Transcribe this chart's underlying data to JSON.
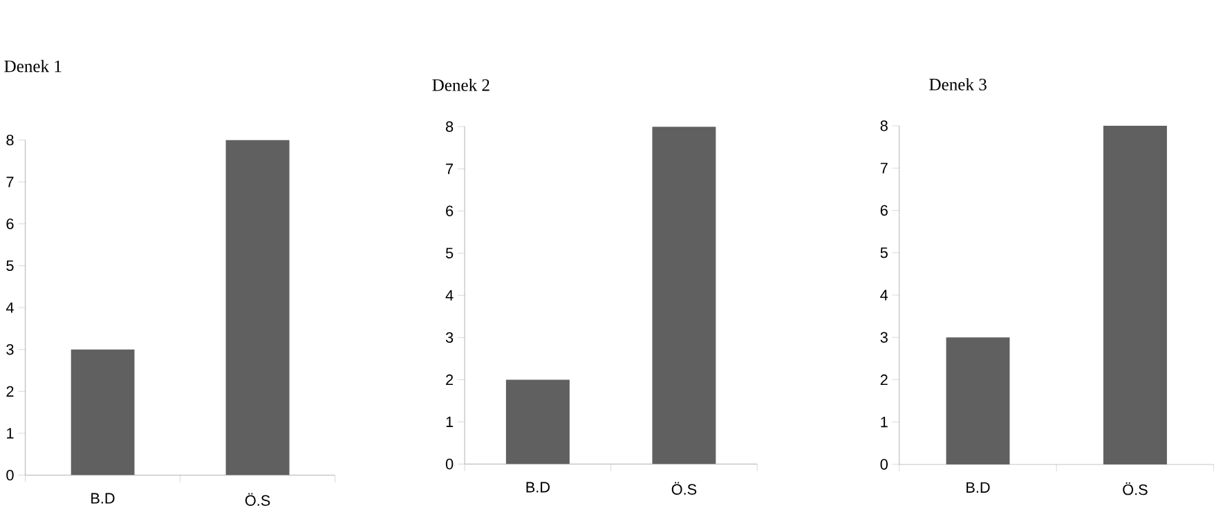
{
  "chart_data": [
    {
      "type": "bar",
      "title": "Denek 1",
      "categories": [
        "B.D",
        "Ö.S"
      ],
      "values": [
        3,
        8
      ],
      "color": "#606060",
      "ylim": [
        0,
        8
      ],
      "yticks": [
        0,
        1,
        2,
        3,
        4,
        5,
        6,
        7,
        8
      ]
    },
    {
      "type": "bar",
      "title": "Denek 2",
      "categories": [
        "B.D",
        "Ö.S"
      ],
      "values": [
        2,
        8
      ],
      "color": "#606060",
      "ylim": [
        0,
        8
      ],
      "yticks": [
        0,
        1,
        2,
        3,
        4,
        5,
        6,
        7,
        8
      ]
    },
    {
      "type": "bar",
      "title": "Denek 3",
      "categories": [
        "B.D",
        "Ö.S"
      ],
      "values": [
        3,
        8
      ],
      "color": "#606060",
      "ylim": [
        0,
        8
      ],
      "yticks": [
        0,
        1,
        2,
        3,
        4,
        5,
        6,
        7,
        8
      ]
    }
  ]
}
